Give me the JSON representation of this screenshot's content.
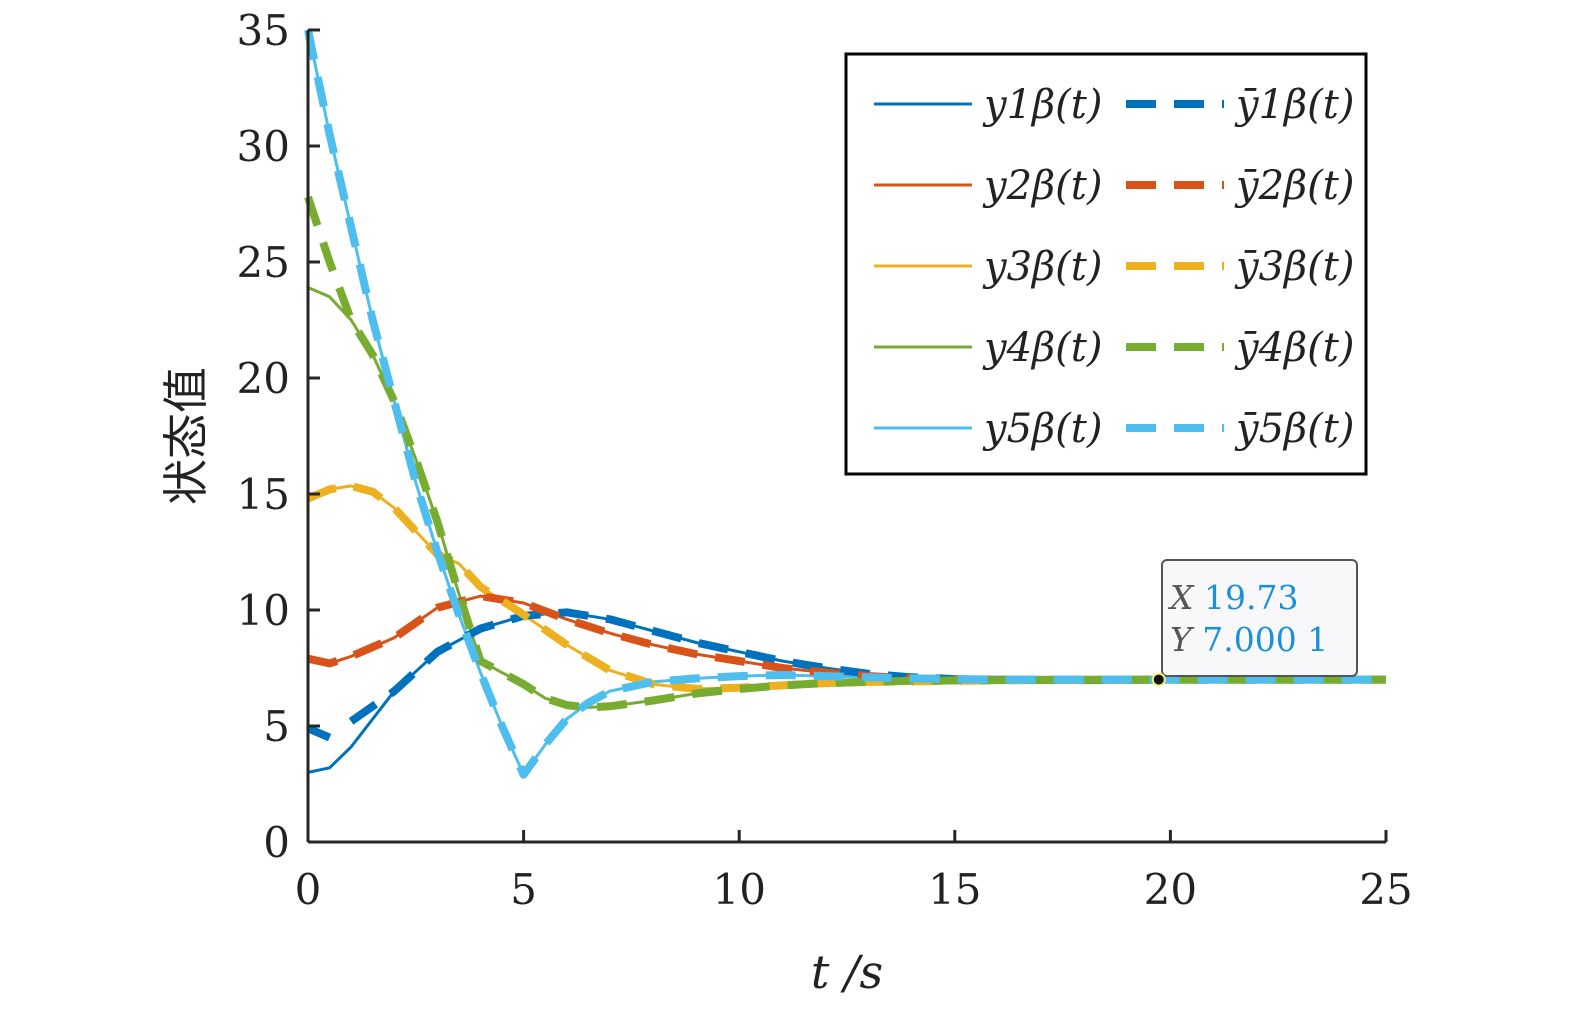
{
  "chart_data": {
    "type": "line",
    "xlabel": "t /s",
    "ylabel": "状态值",
    "xlim": [
      0,
      25
    ],
    "ylim": [
      0,
      35
    ],
    "xticks": [
      "0",
      "5",
      "10",
      "15",
      "20",
      "25"
    ],
    "yticks": [
      "0",
      "5",
      "10",
      "15",
      "20",
      "25",
      "30",
      "35"
    ],
    "grid": false,
    "legend_position": "top-right",
    "legend_columns": 2,
    "colors": {
      "series1": "#0072BD",
      "series2": "#D95319",
      "series3": "#EDB120",
      "series4": "#77AC30",
      "series5": "#4DBEEE"
    },
    "series": [
      {
        "name": "y1β(t)",
        "style": "solid",
        "color": "#0072BD",
        "points": [
          [
            0,
            3.0
          ],
          [
            0.5,
            3.2
          ],
          [
            1,
            4.1
          ],
          [
            2,
            6.5
          ],
          [
            3,
            8.2
          ],
          [
            4,
            9.2
          ],
          [
            5,
            9.75
          ],
          [
            6,
            9.9
          ],
          [
            7,
            9.6
          ],
          [
            8,
            9.1
          ],
          [
            9,
            8.6
          ],
          [
            10,
            8.2
          ],
          [
            11,
            7.8
          ],
          [
            12,
            7.5
          ],
          [
            13,
            7.25
          ],
          [
            14,
            7.1
          ],
          [
            15,
            7.02
          ],
          [
            16,
            6.99
          ],
          [
            18,
            6.98
          ],
          [
            20,
            7.0
          ],
          [
            25,
            7.0
          ]
        ]
      },
      {
        "name": "ȳ1β(t)",
        "style": "dashed",
        "color": "#0072BD",
        "points": [
          [
            0,
            4.9
          ],
          [
            0.5,
            4.5
          ]
        ],
        "points2": [
          [
            1,
            5.2
          ],
          [
            2,
            6.5
          ],
          [
            3,
            8.2
          ],
          [
            4,
            9.2
          ],
          [
            5,
            9.75
          ],
          [
            6,
            9.9
          ],
          [
            7,
            9.6
          ],
          [
            8,
            9.1
          ],
          [
            9,
            8.6
          ],
          [
            10,
            8.2
          ],
          [
            11,
            7.8
          ],
          [
            12,
            7.5
          ],
          [
            13,
            7.25
          ],
          [
            14,
            7.1
          ],
          [
            15,
            7.02
          ],
          [
            16,
            6.99
          ],
          [
            18,
            6.98
          ],
          [
            20,
            7.0
          ],
          [
            25,
            7.0
          ]
        ]
      },
      {
        "name": "y2β(t)",
        "style": "solid",
        "color": "#D95319",
        "points": [
          [
            0,
            7.9
          ],
          [
            0.5,
            7.7
          ],
          [
            1,
            8.0
          ],
          [
            1.5,
            8.4
          ],
          [
            2,
            8.8
          ],
          [
            3,
            10.1
          ],
          [
            4,
            10.6
          ],
          [
            5,
            10.3
          ],
          [
            6,
            9.6
          ],
          [
            7,
            9.0
          ],
          [
            8,
            8.5
          ],
          [
            9,
            8.1
          ],
          [
            10,
            7.8
          ],
          [
            11,
            7.5
          ],
          [
            12,
            7.3
          ],
          [
            13,
            7.15
          ],
          [
            14,
            7.05
          ],
          [
            15,
            7.0
          ],
          [
            17,
            6.99
          ],
          [
            20,
            7.0
          ],
          [
            25,
            7.0
          ]
        ]
      },
      {
        "name": "ȳ2β(t)",
        "style": "dashed",
        "color": "#D95319",
        "points": [
          [
            0,
            7.9
          ],
          [
            0.5,
            7.7
          ],
          [
            1,
            8.0
          ],
          [
            1.5,
            8.4
          ],
          [
            2,
            8.8
          ],
          [
            3,
            10.1
          ],
          [
            4,
            10.6
          ],
          [
            5,
            10.3
          ],
          [
            6,
            9.6
          ],
          [
            7,
            9.0
          ],
          [
            8,
            8.5
          ],
          [
            9,
            8.1
          ],
          [
            10,
            7.8
          ],
          [
            11,
            7.5
          ],
          [
            12,
            7.3
          ],
          [
            13,
            7.15
          ],
          [
            14,
            7.05
          ],
          [
            15,
            7.0
          ],
          [
            17,
            6.99
          ],
          [
            20,
            7.0
          ],
          [
            25,
            7.0
          ]
        ]
      },
      {
        "name": "y3β(t)",
        "style": "solid",
        "color": "#EDB120",
        "points": [
          [
            0,
            14.8
          ],
          [
            0.5,
            15.2
          ],
          [
            1,
            15.35
          ],
          [
            1.5,
            15.1
          ],
          [
            2,
            14.4
          ],
          [
            2.5,
            13.4
          ],
          [
            3,
            12.4
          ],
          [
            3.5,
            12.0
          ],
          [
            4,
            11.0
          ],
          [
            5,
            9.8
          ],
          [
            6,
            8.5
          ],
          [
            7,
            7.4
          ],
          [
            8,
            6.8
          ],
          [
            9,
            6.6
          ],
          [
            10,
            6.65
          ],
          [
            11,
            6.75
          ],
          [
            12,
            6.85
          ],
          [
            13,
            6.9
          ],
          [
            15,
            6.95
          ],
          [
            17,
            6.98
          ],
          [
            20,
            7.0
          ],
          [
            25,
            7.0
          ]
        ]
      },
      {
        "name": "ȳ3β(t)",
        "style": "dashed",
        "color": "#EDB120",
        "points": [
          [
            0,
            14.8
          ],
          [
            0.5,
            15.2
          ],
          [
            1,
            15.35
          ],
          [
            1.5,
            15.1
          ],
          [
            2,
            14.4
          ],
          [
            2.5,
            13.4
          ],
          [
            3,
            12.4
          ],
          [
            3.5,
            12.0
          ],
          [
            4,
            11.0
          ],
          [
            5,
            9.8
          ],
          [
            6,
            8.5
          ],
          [
            7,
            7.4
          ],
          [
            8,
            6.8
          ],
          [
            9,
            6.6
          ],
          [
            10,
            6.65
          ],
          [
            11,
            6.75
          ],
          [
            12,
            6.85
          ],
          [
            13,
            6.9
          ],
          [
            15,
            6.95
          ],
          [
            17,
            6.98
          ],
          [
            20,
            7.0
          ],
          [
            25,
            7.0
          ]
        ]
      },
      {
        "name": "y4β(t)",
        "style": "solid",
        "color": "#77AC30",
        "points": [
          [
            0,
            23.9
          ],
          [
            0.5,
            23.5
          ],
          [
            1,
            22.5
          ],
          [
            1.5,
            21.0
          ],
          [
            2,
            19.0
          ],
          [
            2.5,
            16.5
          ],
          [
            3,
            13.8
          ],
          [
            3.5,
            10.7
          ],
          [
            4,
            7.8
          ],
          [
            4.5,
            7.3
          ],
          [
            5,
            6.8
          ],
          [
            5.5,
            6.2
          ],
          [
            6,
            5.9
          ],
          [
            6.5,
            5.8
          ],
          [
            7,
            5.85
          ],
          [
            8,
            6.1
          ],
          [
            9,
            6.4
          ],
          [
            10,
            6.6
          ],
          [
            11,
            6.75
          ],
          [
            12,
            6.85
          ],
          [
            14,
            6.95
          ],
          [
            16,
            6.98
          ],
          [
            18,
            6.99
          ],
          [
            20,
            7.0
          ],
          [
            25,
            7.0
          ]
        ]
      },
      {
        "name": "ȳ4β(t)",
        "style": "dashed",
        "color": "#77AC30",
        "points": [
          [
            0,
            27.8
          ],
          [
            0.5,
            25.0
          ],
          [
            1,
            22.5
          ],
          [
            1.5,
            21.0
          ],
          [
            2,
            19.0
          ],
          [
            2.5,
            16.5
          ],
          [
            3,
            13.8
          ],
          [
            3.5,
            10.7
          ],
          [
            4,
            7.8
          ],
          [
            4.5,
            7.3
          ],
          [
            5,
            6.8
          ],
          [
            5.5,
            6.2
          ],
          [
            6,
            5.9
          ],
          [
            6.5,
            5.8
          ],
          [
            7,
            5.85
          ],
          [
            8,
            6.1
          ],
          [
            9,
            6.4
          ],
          [
            10,
            6.6
          ],
          [
            11,
            6.75
          ],
          [
            12,
            6.85
          ],
          [
            14,
            6.95
          ],
          [
            16,
            6.98
          ],
          [
            18,
            6.99
          ],
          [
            20,
            7.0
          ],
          [
            25,
            7.0
          ]
        ]
      },
      {
        "name": "y5β(t)",
        "style": "solid",
        "color": "#4DBEEE",
        "points": [
          [
            0,
            35.0
          ],
          [
            0.5,
            30.5
          ],
          [
            1,
            26.5
          ],
          [
            1.5,
            22.5
          ],
          [
            2,
            19.0
          ],
          [
            2.5,
            15.5
          ],
          [
            3,
            12.5
          ],
          [
            3.5,
            9.8
          ],
          [
            4,
            7.3
          ],
          [
            4.5,
            5.0
          ],
          [
            5,
            2.9
          ],
          [
            5.5,
            4.2
          ],
          [
            6,
            5.3
          ],
          [
            6.5,
            6.0
          ],
          [
            7,
            6.5
          ],
          [
            8,
            6.9
          ],
          [
            9,
            7.05
          ],
          [
            10,
            7.15
          ],
          [
            11,
            7.2
          ],
          [
            12,
            7.15
          ],
          [
            13,
            7.1
          ],
          [
            14,
            7.05
          ],
          [
            16,
            7.0
          ],
          [
            20,
            7.0
          ],
          [
            25,
            7.0
          ]
        ]
      },
      {
        "name": "ȳ5β(t)",
        "style": "dashed",
        "color": "#4DBEEE",
        "points": [
          [
            0,
            35.0
          ],
          [
            0.5,
            30.5
          ],
          [
            1,
            26.5
          ],
          [
            1.5,
            22.5
          ],
          [
            2,
            19.0
          ],
          [
            2.5,
            15.5
          ],
          [
            3,
            12.5
          ],
          [
            3.5,
            9.8
          ],
          [
            4,
            7.3
          ],
          [
            4.5,
            5.0
          ],
          [
            5,
            2.9
          ],
          [
            5.5,
            4.2
          ],
          [
            6,
            5.3
          ],
          [
            6.5,
            6.0
          ],
          [
            7,
            6.5
          ],
          [
            8,
            6.9
          ],
          [
            9,
            7.05
          ],
          [
            10,
            7.15
          ],
          [
            11,
            7.2
          ],
          [
            12,
            7.15
          ],
          [
            13,
            7.1
          ],
          [
            14,
            7.05
          ],
          [
            16,
            7.0
          ],
          [
            20,
            7.0
          ],
          [
            25,
            7.0
          ]
        ]
      }
    ],
    "datatip": {
      "x": 19.73,
      "y": 7.0001,
      "x_label": "X",
      "y_label": "Y",
      "x_text": "19.73",
      "y_text": "7.000 1",
      "value_color": "#1A90D9"
    }
  }
}
